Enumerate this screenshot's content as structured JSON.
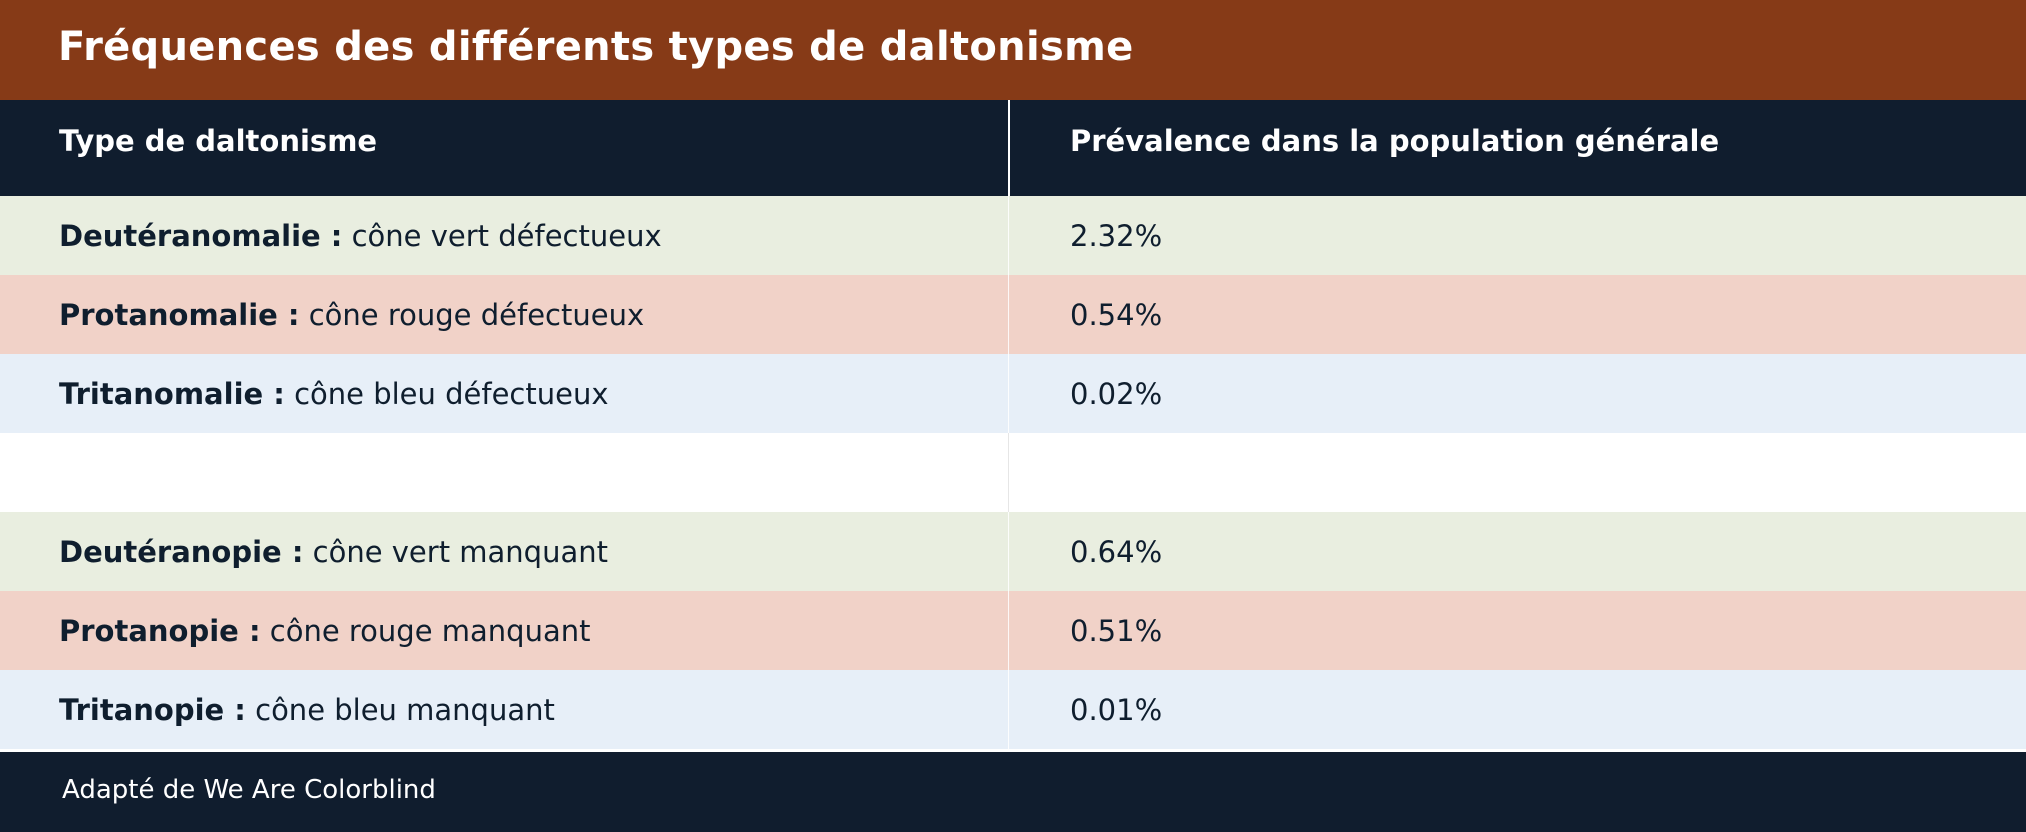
{
  "title": "Fréquences des différents types de daltonisme",
  "colors": {
    "title_bg": "#863a17",
    "header_bg": "#101d2e",
    "footer_bg": "#101d2e",
    "row_green": "#e9eee0",
    "row_red": "#f1d2c8",
    "row_blue": "#e7eff8",
    "text_dark": "#0f1e2e",
    "text_light": "#ffffff"
  },
  "chart_data": {
    "type": "table",
    "columns": [
      "Type de daltonisme",
      "Prévalence dans la population générale"
    ],
    "rows": [
      {
        "name": "Deutéranomalie :",
        "desc": "cône vert défectueux",
        "value": "2.32%",
        "color": "#e9eee0"
      },
      {
        "name": "Protanomalie :",
        "desc": "cône rouge défectueux",
        "value": "0.54%",
        "color": "#f1d2c8"
      },
      {
        "name": "Tritanomalie :",
        "desc": "cône bleu défectueux",
        "value": "0.02%",
        "color": "#e7eff8"
      },
      {
        "name": "",
        "desc": "",
        "value": "",
        "color": "#ffffff"
      },
      {
        "name": "Deutéranopie :",
        "desc": "cône vert manquant",
        "value": "0.64%",
        "color": "#e9eee0"
      },
      {
        "name": "Protanopie :",
        "desc": "cône rouge manquant",
        "value": "0.51%",
        "color": "#f1d2c8"
      },
      {
        "name": "Tritanopie :",
        "desc": "cône bleu manquant",
        "value": "0.01%",
        "color": "#e7eff8"
      }
    ]
  },
  "footer": "Adapté de We Are Colorblind"
}
